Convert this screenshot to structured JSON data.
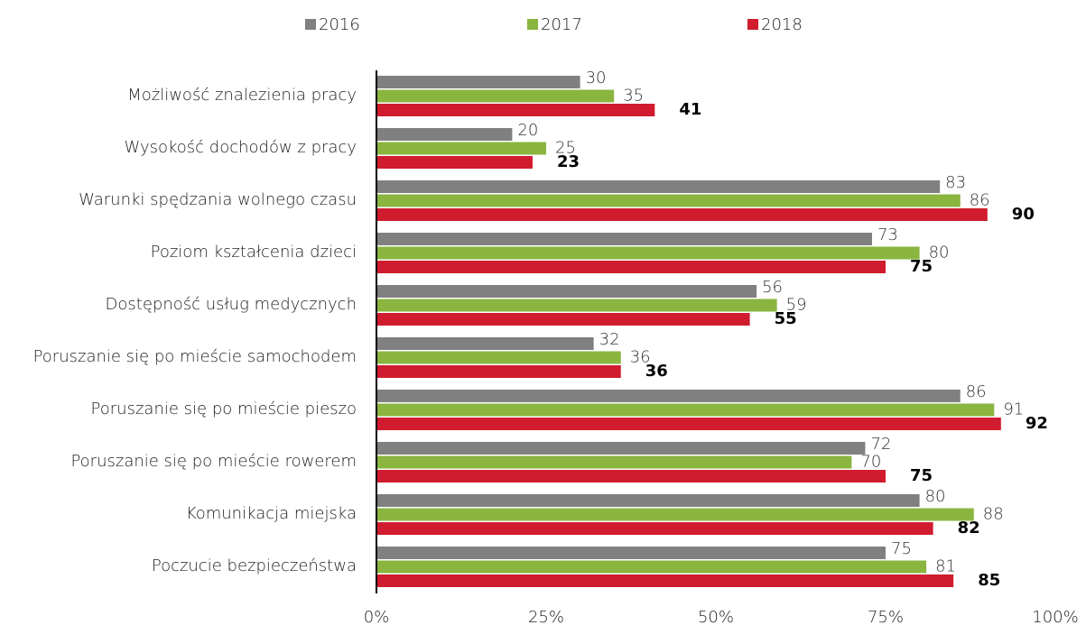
{
  "chart_data": {
    "type": "hbar",
    "categories": [
      "Możliwość znalezienia pracy",
      "Wysokość dochodów z pracy",
      "Warunki spędzania wolnego czasu",
      "Poziom kształcenia dzieci",
      "Dostępność usług medycznych",
      "Poruszanie się po mieście samochodem",
      "Poruszanie się po mieście pieszo",
      "Poruszanie się po mieście rowerem",
      "Komunikacja miejska",
      "Poczucie bezpieczeństwa"
    ],
    "series": [
      {
        "name": "2016",
        "color": "#808080",
        "values": [
          30,
          20,
          83,
          73,
          56,
          32,
          86,
          72,
          80,
          75
        ]
      },
      {
        "name": "2017",
        "color": "#8ab53f",
        "values": [
          35,
          25,
          86,
          80,
          59,
          36,
          91,
          70,
          88,
          81
        ]
      },
      {
        "name": "2018",
        "color": "#d01c2e",
        "values": [
          41,
          23,
          90,
          75,
          55,
          36,
          92,
          75,
          82,
          85
        ]
      }
    ],
    "xlim": [
      0,
      100
    ],
    "xticks": [
      {
        "value": 0,
        "label": "0%"
      },
      {
        "value": 25,
        "label": "25%"
      },
      {
        "value": 50,
        "label": "50%"
      },
      {
        "value": 75,
        "label": "75%"
      },
      {
        "value": 100,
        "label": "100%"
      }
    ],
    "legend": "top"
  }
}
